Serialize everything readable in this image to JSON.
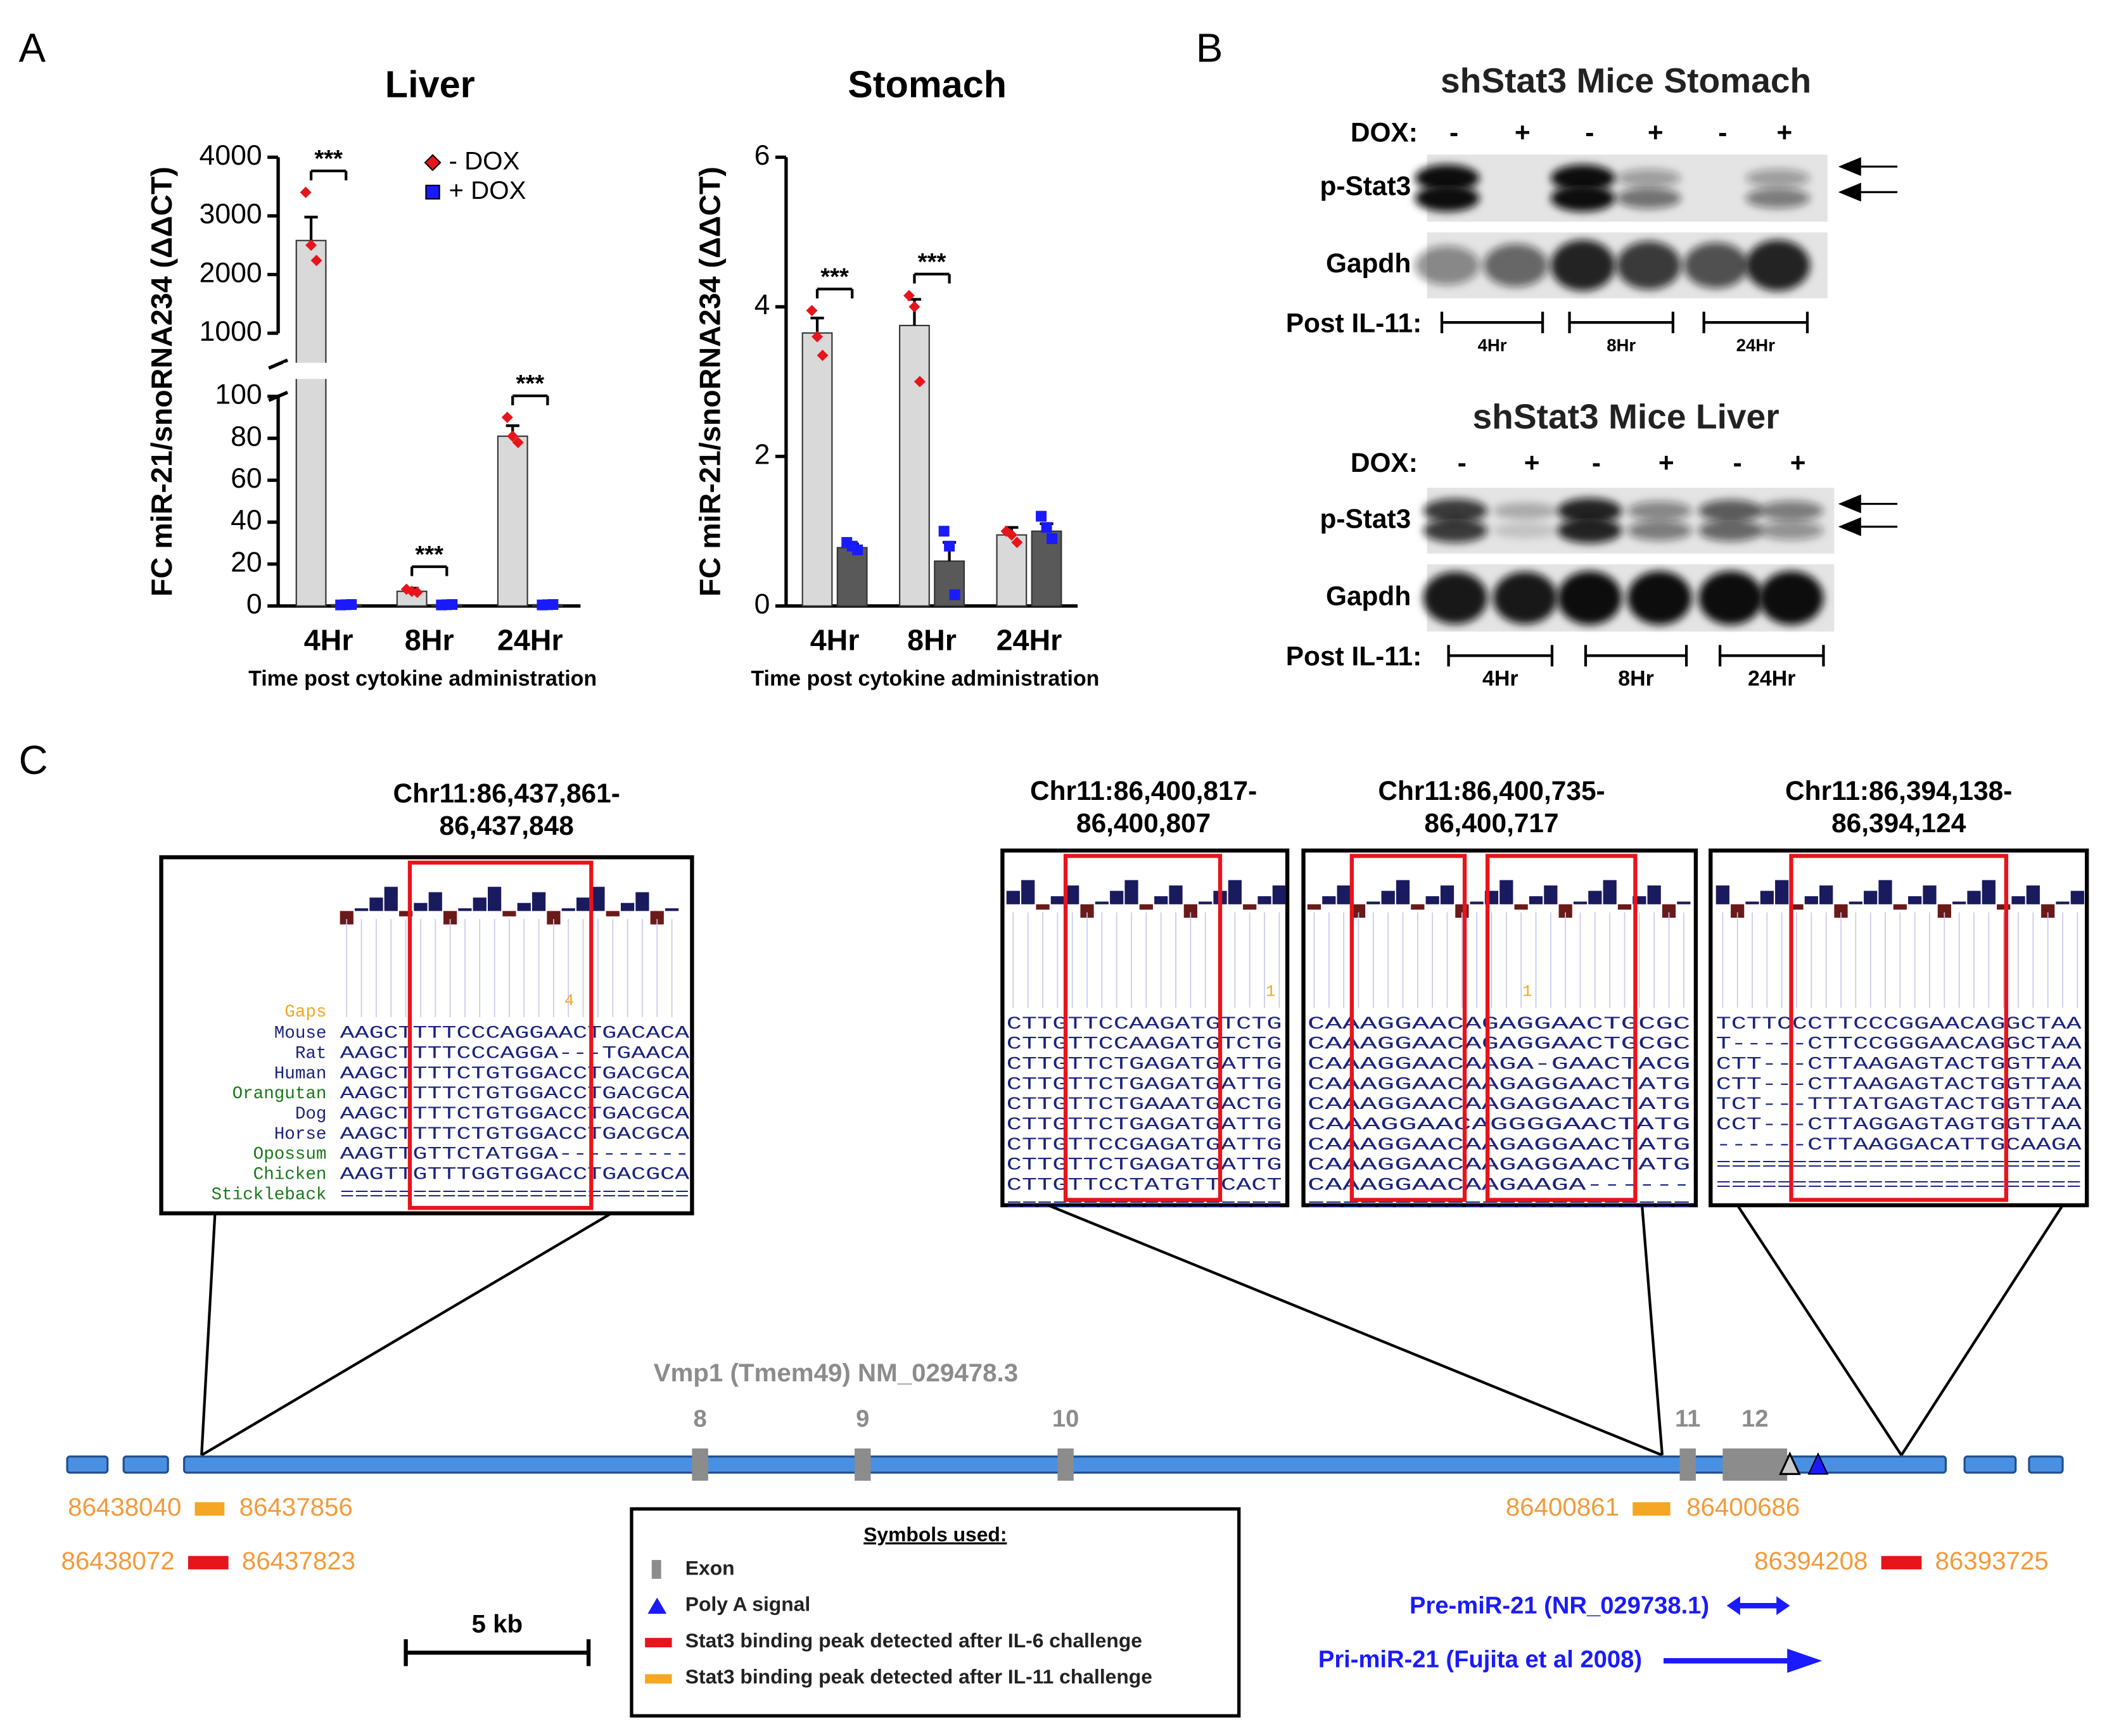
{
  "panels": [
    "A",
    "B",
    "C"
  ],
  "chart_data": [
    {
      "type": "bar",
      "title": "Liver",
      "ylabel": "FC miR-21/snoRNA234 (ΔΔCT)",
      "xlabel": "Time post cytokine administration",
      "categories": [
        "4Hr",
        "8Hr",
        "24Hr"
      ],
      "ylim": [
        0,
        4000
      ],
      "ybreak": [
        100,
        1000
      ],
      "yticks": [
        0,
        20,
        40,
        60,
        80,
        100,
        1000,
        2000,
        3000,
        4000
      ],
      "legend": "top-right",
      "series": [
        {
          "name": "- DOX",
          "color": "#d9d9d9",
          "point_color": "#e8141b",
          "marker": "diamond",
          "values": [
            2580,
            7,
            81
          ],
          "errors": [
            400,
            1.5,
            5
          ],
          "points": [
            [
              3400,
              2500,
              2240
            ],
            [
              8,
              7,
              6.5
            ],
            [
              90,
              81,
              78
            ]
          ]
        },
        {
          "name": "+ DOX",
          "color": "#595959",
          "point_color": "#1a1aff",
          "marker": "square",
          "values": [
            0.6,
            0.6,
            0.6
          ],
          "errors": [
            0.3,
            0.3,
            0.3
          ],
          "points": [
            [
              0.5,
              0.6,
              0.7
            ],
            [
              0.5,
              0.6,
              0.7
            ],
            [
              0.5,
              0.6,
              0.7
            ]
          ]
        }
      ],
      "significance": [
        "***",
        "***",
        "***"
      ]
    },
    {
      "type": "bar",
      "title": "Stomach",
      "ylabel": "FC miR-21/snoRNA234 (ΔΔCT)",
      "xlabel": "Time post cytokine administration",
      "categories": [
        "4Hr",
        "8Hr",
        "24Hr"
      ],
      "ylim": [
        0,
        6
      ],
      "yticks": [
        0,
        2,
        4,
        6
      ],
      "series": [
        {
          "name": "- DOX",
          "color": "#d9d9d9",
          "point_color": "#e8141b",
          "marker": "diamond",
          "values": [
            3.65,
            3.75,
            0.95
          ],
          "errors": [
            0.2,
            0.35,
            0.1
          ],
          "points": [
            [
              3.95,
              3.6,
              3.35
            ],
            [
              4.15,
              4.0,
              3.0
            ],
            [
              1.0,
              0.95,
              0.85
            ]
          ]
        },
        {
          "name": "+ DOX",
          "color": "#595959",
          "point_color": "#1a1aff",
          "marker": "square",
          "values": [
            0.78,
            0.6,
            1.0
          ],
          "errors": [
            0.05,
            0.25,
            0.1
          ],
          "points": [
            [
              0.85,
              0.8,
              0.75
            ],
            [
              1.0,
              0.8,
              0.15
            ],
            [
              1.2,
              1.05,
              0.9
            ]
          ]
        }
      ],
      "significance": [
        "***",
        "***",
        null
      ]
    }
  ],
  "blots": [
    {
      "title": "shStat3 Mice Stomach",
      "dox_label": "DOX:",
      "dox": [
        "-",
        "+",
        "-",
        "+",
        "-",
        "+"
      ],
      "rows": [
        "p-Stat3",
        "Gapdh"
      ],
      "time_label": "Post IL-11:",
      "times": [
        "4Hr",
        "8Hr",
        "24Hr"
      ]
    },
    {
      "title": "shStat3 Mice Liver",
      "dox_label": "DOX:",
      "dox": [
        "-",
        "+",
        "-",
        "+",
        "-",
        "+"
      ],
      "rows": [
        "p-Stat3",
        "Gapdh"
      ],
      "time_label": "Post IL-11:",
      "times": [
        "4Hr",
        "8Hr",
        "24Hr"
      ]
    }
  ],
  "alignment": {
    "gaps_label": "Gaps",
    "species": [
      {
        "name": "Mouse",
        "color": "#1a237e"
      },
      {
        "name": "Rat",
        "color": "#1a237e"
      },
      {
        "name": "Human",
        "color": "#1a237e"
      },
      {
        "name": "Orangutan",
        "color": "#1b7a1b"
      },
      {
        "name": "Dog",
        "color": "#1a237e"
      },
      {
        "name": "Horse",
        "color": "#1a237e"
      },
      {
        "name": "Opossum",
        "color": "#1b7a1b"
      },
      {
        "name": "Chicken",
        "color": "#1b7a1b"
      },
      {
        "name": "Stickleback",
        "color": "#1b7a1b"
      }
    ],
    "boxes": [
      {
        "locus": [
          "Chr11:86,437,861-",
          "86,437,848"
        ],
        "gap": "4",
        "rows": [
          "AAGCTTTTCCCAGGAACTGACACA",
          "AAGCTTTTCCCAGGA---TGAACA",
          "AAGCTTTTCTGTGGACCTGACGCA",
          "AAGCTTTTCTGTGGACCTGACGCA",
          "AAGCTTTTCTGTGGACCTGACGCA",
          "AAGCTTTTCTGTGGACCTGACGCA",
          "AAGTTGTTCTATGGA---------",
          "AAGTTGTTTGGTGGACCTGACGCA",
          "========================"
        ]
      },
      {
        "locus": [
          "Chr11:86,400,817-",
          "86,400,807"
        ],
        "gap": "1",
        "rows": [
          "CTTGTTCCAAGATGTCTG",
          "CTTGTTCCAAGATGTCTG",
          "CTTGTTCTGAGATGATTG",
          "CTTGTTCTGAGATGATTG",
          "CTTGTTCTGAAATGACTG",
          "CTTGTTCTGAGATGATTG",
          "CTTGTTCCGAGATGATTG",
          "CTTGTTCTGAGATGATTG",
          "CTTGTTCCTATGTTCACT",
          "=================="
        ]
      },
      {
        "locus": [
          "Chr11:86,400,735-",
          "86,400,717"
        ],
        "gap": "1",
        "rows": [
          "CAAAGGAACAGAGGAACTGCGC",
          "CAAAGGAACAGAGGAACTGCGC",
          "CAAAGGAACAAGA-GAACTACG",
          "CAAAGGAACAAGAGGAACTATG",
          "CAAAGGAACAAGAGGAACTATG",
          "CAAAGGAACAGGGGAACTATG",
          "CAAAGGAACAAGAGGAACTATG",
          "CAAAGGAACAAGAGGAACTATG",
          "CAAAGGAACAAGAAGA------",
          "======================"
        ]
      },
      {
        "locus": [
          "Chr11:86,394,138-",
          "86,394,124"
        ],
        "gap": null,
        "rows": [
          "TCTTCCCTTCCCGGAACAGGCTAA",
          "T-----CTTCCGGGAACAGGCTAA",
          "CTT---CTTAAGAGTACTGGTTAA",
          "CTT---CTTAAGAGTACTGGTTAA",
          "TCT---TTTATGAGTACTGGTTAA",
          "CCT---CTTAGGAGTAGTGGTTAA",
          "------CTTAAGGACATTGCAAGA",
          "========================",
          "========================"
        ]
      }
    ]
  },
  "gene_track": {
    "title": "Vmp1 (Tmem49) NM_029478.3",
    "exons": [
      "8",
      "9",
      "10",
      "11",
      "12"
    ],
    "peaks": [
      {
        "start": "86438040",
        "end": "86437856",
        "kind": "IL-11"
      },
      {
        "start": "86438072",
        "end": "86437823",
        "kind": "IL-6"
      },
      {
        "start": "86400861",
        "end": "86400686",
        "kind": "IL-11"
      },
      {
        "start": "86394208",
        "end": "86393725",
        "kind": "IL-6"
      }
    ],
    "scale": "5 kb",
    "pre_mir": "Pre-miR-21 (NR_029738.1)",
    "pri_mir": "Pri-miR-21 (Fujita et al 2008)"
  },
  "legend": {
    "title": "Symbols used:",
    "items": [
      "Exon",
      "Poly A signal",
      "Stat3 binding peak detected after IL-6 challenge",
      "Stat3 binding peak detected after IL-11 challenge"
    ]
  }
}
